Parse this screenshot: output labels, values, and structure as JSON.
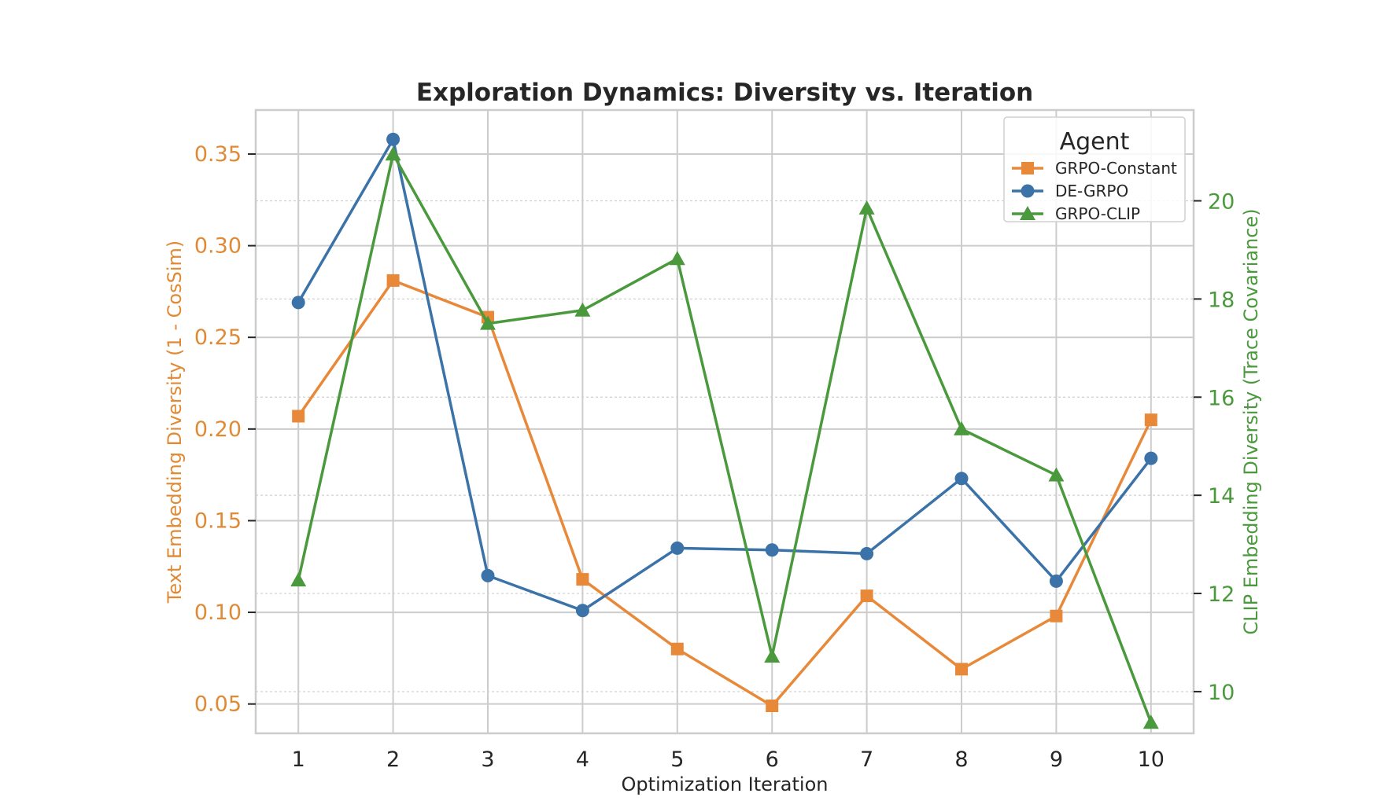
{
  "chart_data": {
    "type": "line",
    "title": "Exploration Dynamics: Diversity vs. Iteration",
    "xlabel": "Optimization Iteration",
    "ylabel_left": "Text Embedding Diversity (1 - CosSim)",
    "ylabel_right": "CLIP Embedding Diversity (Trace Covariance)",
    "x": [
      1,
      2,
      3,
      4,
      5,
      6,
      7,
      8,
      9,
      10
    ],
    "xlim": [
      0.55,
      10.45
    ],
    "ylim_left": [
      0.034,
      0.374
    ],
    "ylim_right": [
      9.15,
      21.85
    ],
    "yticks_left": [
      0.05,
      0.1,
      0.15,
      0.2,
      0.25,
      0.3,
      0.35
    ],
    "yticks_left_labels": [
      "0.05",
      "0.10",
      "0.15",
      "0.20",
      "0.25",
      "0.30",
      "0.35"
    ],
    "yticks_right": [
      10,
      12,
      14,
      16,
      18,
      20
    ],
    "yticks_right_labels": [
      "10",
      "12",
      "14",
      "16",
      "18",
      "20"
    ],
    "grid": true,
    "legend": {
      "title": "Agent",
      "placement": "top-right"
    },
    "series": [
      {
        "name": "GRPO-Constant",
        "axis": "left",
        "marker": "square",
        "color": "#e8893a",
        "values": [
          0.207,
          0.281,
          0.261,
          0.118,
          0.08,
          0.049,
          0.109,
          0.069,
          0.098,
          0.205
        ]
      },
      {
        "name": "DE-GRPO",
        "axis": "left",
        "marker": "circle",
        "color": "#3b73a8",
        "values": [
          0.269,
          0.358,
          0.12,
          0.101,
          0.135,
          0.134,
          0.132,
          0.173,
          0.117,
          0.184
        ]
      },
      {
        "name": "GRPO-CLIP",
        "axis": "right",
        "marker": "triangle",
        "color": "#4a9a3d",
        "values": [
          12.27,
          20.95,
          17.5,
          17.77,
          18.82,
          10.72,
          19.85,
          15.35,
          14.41,
          9.37
        ]
      }
    ]
  }
}
